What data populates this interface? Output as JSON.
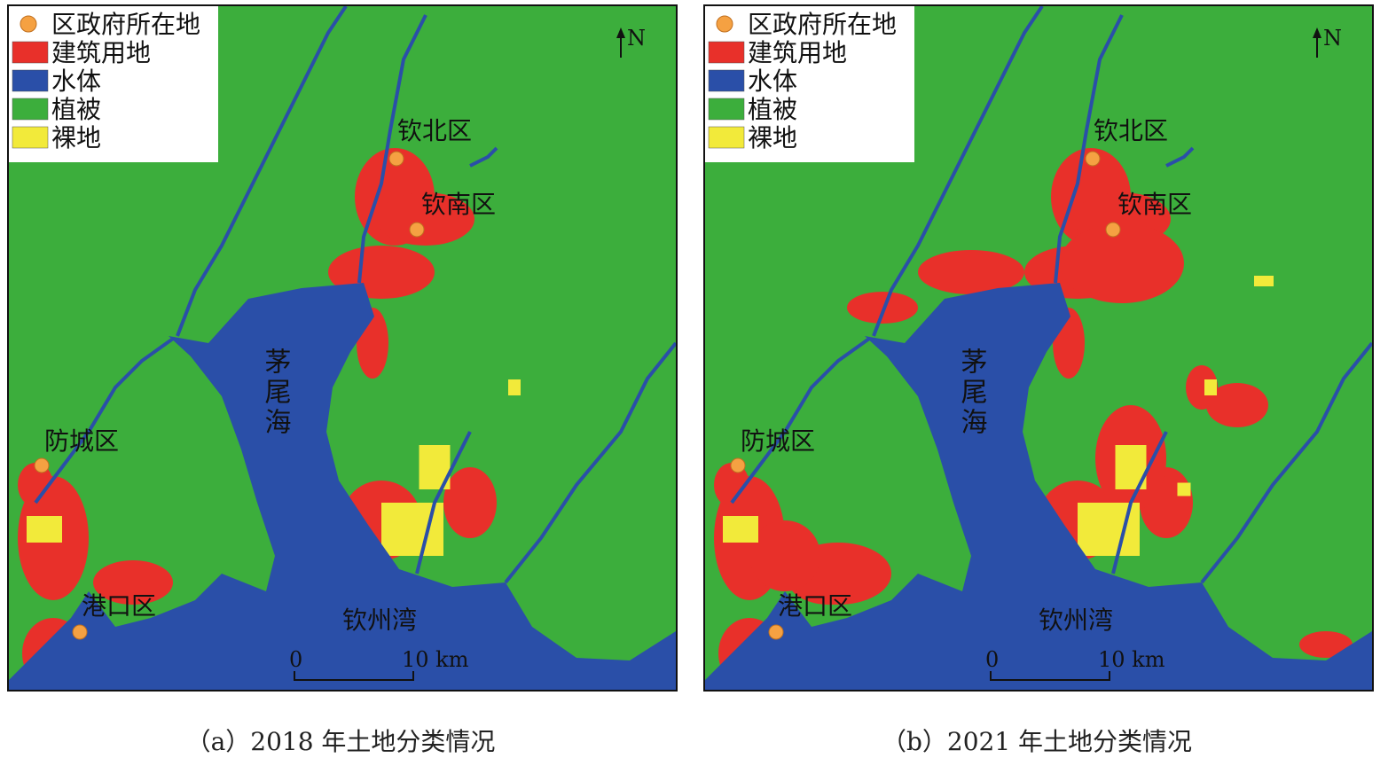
{
  "legend": [
    {
      "label": "区政府所在地",
      "color": "#f5a142"
    },
    {
      "label": "建筑用地",
      "color": "#e8302a"
    },
    {
      "label": "水体",
      "color": "#2a4fa8"
    },
    {
      "label": "植被",
      "color": "#3cae3c"
    },
    {
      "label": "裸地",
      "color": "#f2ea3a"
    }
  ],
  "north": "N",
  "scale_bar": {
    "start": "0",
    "end": "10 km"
  },
  "water_labels": [
    "茅尾海",
    "钦州湾"
  ],
  "panels": [
    {
      "caption": "（a）2018 年土地分类情况",
      "places": [
        "钦北区",
        "钦南区",
        "防城区",
        "港口区"
      ]
    },
    {
      "caption": "（b）2021 年土地分类情况",
      "places": [
        "钦北区",
        "钦南区",
        "防城区",
        "港口区"
      ]
    }
  ]
}
